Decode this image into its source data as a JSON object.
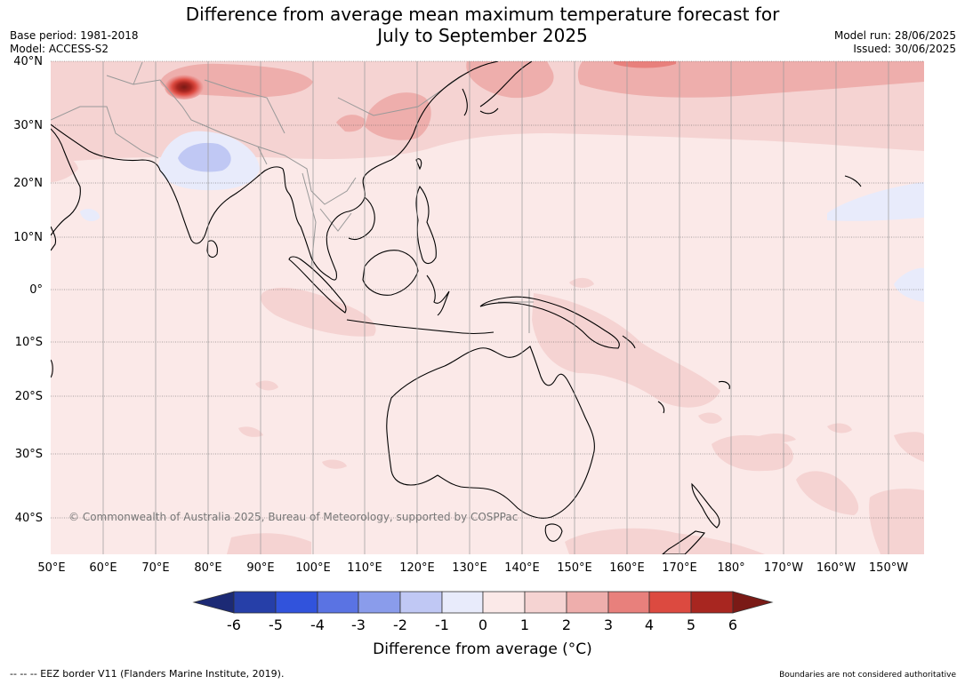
{
  "title_line1": "Difference from average mean maximum temperature forecast for",
  "title_line2": "July to September 2025",
  "base_period": "Base period: 1981-2018",
  "model": "Model: ACCESS-S2",
  "model_run": "Model run: 28/06/2025",
  "issued": "Issued: 30/06/2025",
  "lat_labels": [
    "40°N",
    "30°N",
    "20°N",
    "10°N",
    "0°",
    "10°S",
    "20°S",
    "30°S",
    "40°S"
  ],
  "lon_labels": [
    "50°E",
    "60°E",
    "70°E",
    "80°E",
    "90°E",
    "100°E",
    "110°E",
    "120°E",
    "130°E",
    "140°E",
    "150°E",
    "160°E",
    "170°E",
    "180°",
    "170°W",
    "160°W",
    "150°W"
  ],
  "copyright": "© Commonwealth of Australia 2025, Bureau of Meteorology, supported by COSPPac",
  "colorbar": {
    "ticks": [
      "-6",
      "-5",
      "-4",
      "-3",
      "-2",
      "-1",
      "0",
      "1",
      "2",
      "3",
      "4",
      "5",
      "6"
    ],
    "label": "Difference from average (°C)",
    "colors": [
      "#1c2a75",
      "#263fa8",
      "#3153dc",
      "#5a73e3",
      "#8a9ceb",
      "#c0c8f4",
      "#e8ebfb",
      "#fbe9e8",
      "#f5d3d2",
      "#eeaeac",
      "#e8807c",
      "#dc4a40",
      "#a82620",
      "#7a1a16"
    ]
  },
  "eez_note": "--  --  -- EEZ border V11 (Flanders Marine Institute, 2019).",
  "disclaimer": "Boundaries are not considered authoritative"
}
